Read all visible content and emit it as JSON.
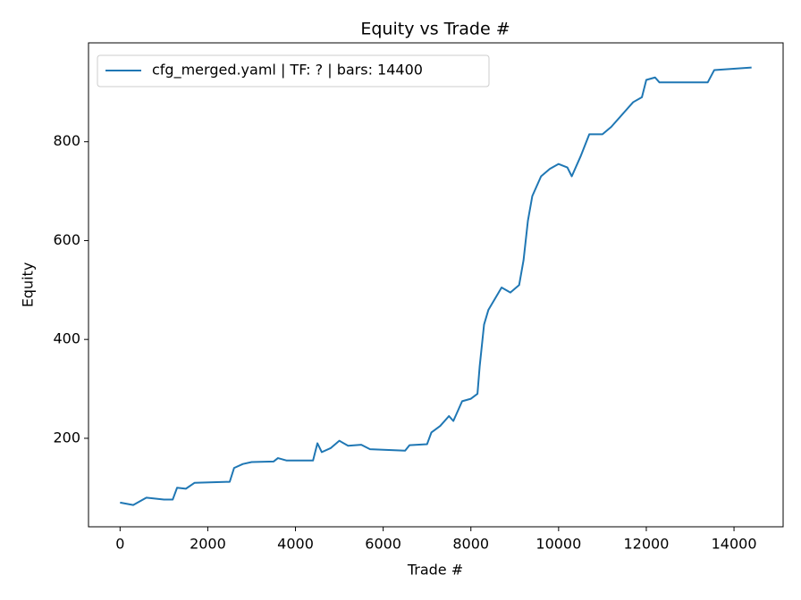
{
  "chart_data": {
    "type": "line",
    "title": "Equity vs Trade #",
    "x_label": "Trade #",
    "y_label": "Equity",
    "x": [
      0,
      300,
      500,
      600,
      1000,
      1200,
      1300,
      1500,
      1700,
      2500,
      2600,
      2800,
      3000,
      3500,
      3600,
      3800,
      4400,
      4500,
      4600,
      4800,
      5000,
      5200,
      5500,
      5700,
      6500,
      6600,
      7000,
      7100,
      7300,
      7500,
      7600,
      7800,
      8000,
      8150,
      8200,
      8300,
      8400,
      8600,
      8700,
      8900,
      9100,
      9200,
      9300,
      9400,
      9600,
      9800,
      10000,
      10200,
      10300,
      10500,
      10700,
      11000,
      11200,
      11500,
      11700,
      11900,
      12000,
      12200,
      12300,
      13400,
      13550,
      14400
    ],
    "series": [
      {
        "name": "cfg_merged.yaml | TF: ? | bars: 14400",
        "color": "#1f77b4",
        "values": [
          70,
          65,
          75,
          80,
          76,
          76,
          100,
          98,
          110,
          112,
          140,
          148,
          152,
          153,
          160,
          155,
          155,
          190,
          172,
          180,
          195,
          185,
          187,
          178,
          175,
          186,
          188,
          212,
          225,
          245,
          235,
          275,
          280,
          290,
          345,
          430,
          460,
          490,
          505,
          495,
          510,
          560,
          640,
          690,
          730,
          745,
          755,
          748,
          730,
          770,
          815,
          815,
          830,
          860,
          880,
          890,
          925,
          930,
          920,
          920,
          945,
          950
        ]
      }
    ],
    "xlim": [
      -720,
      15120
    ],
    "ylim": [
      21,
      1000
    ],
    "xticks": [
      0,
      2000,
      4000,
      6000,
      8000,
      10000,
      12000,
      14000
    ],
    "yticks": [
      200,
      400,
      600,
      800
    ],
    "legend": "upper left"
  }
}
